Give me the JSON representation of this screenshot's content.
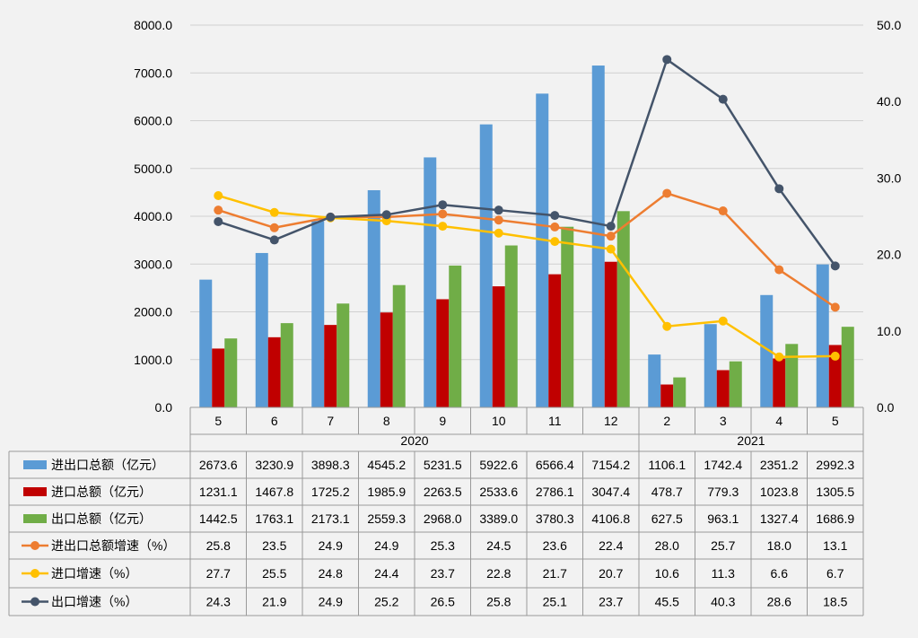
{
  "chart_data": {
    "type": "bar",
    "categories": [
      "5",
      "6",
      "7",
      "8",
      "9",
      "10",
      "11",
      "12",
      "2",
      "3",
      "4",
      "5"
    ],
    "year_groups": [
      {
        "label": "2020",
        "count": 8
      },
      {
        "label": "2021",
        "count": 4
      }
    ],
    "y_left": {
      "min": 0,
      "max": 8000,
      "step": 1000,
      "tick_labels": [
        "0.0",
        "1000.0",
        "2000.0",
        "3000.0",
        "4000.0",
        "5000.0",
        "6000.0",
        "7000.0",
        "8000.0"
      ]
    },
    "y_right": {
      "min": 0,
      "max": 50,
      "step": 10,
      "tick_labels": [
        "0.0",
        "10.0",
        "20.0",
        "30.0",
        "40.0",
        "50.0"
      ]
    },
    "grid": "horizontal",
    "legend": "table-below",
    "bar_series": [
      {
        "name": "进出口总额（亿元）",
        "color": "#5b9bd5",
        "values": [
          2673.6,
          3230.9,
          3898.3,
          4545.2,
          5231.5,
          5922.6,
          6566.4,
          7154.2,
          1106.1,
          1742.4,
          2351.2,
          2992.3
        ],
        "labels": [
          "2673.6",
          "3230.9",
          "3898.3",
          "4545.2",
          "5231.5",
          "5922.6",
          "6566.4",
          "7154.2",
          "1106.1",
          "1742.4",
          "2351.2",
          "2992.3"
        ]
      },
      {
        "name": "进口总额（亿元）",
        "color": "#c00000",
        "values": [
          1231.1,
          1467.8,
          1725.2,
          1985.9,
          2263.5,
          2533.6,
          2786.1,
          3047.4,
          478.7,
          779.3,
          1023.8,
          1305.5
        ],
        "labels": [
          "1231.1",
          "1467.8",
          "1725.2",
          "1985.9",
          "2263.5",
          "2533.6",
          "2786.1",
          "3047.4",
          "478.7",
          "779.3",
          "1023.8",
          "1305.5"
        ]
      },
      {
        "name": "出口总额（亿元）",
        "color": "#70ad47",
        "values": [
          1442.5,
          1763.1,
          2173.1,
          2559.3,
          2968.0,
          3389.0,
          3780.3,
          4106.8,
          627.5,
          963.1,
          1327.4,
          1686.9
        ],
        "labels": [
          "1442.5",
          "1763.1",
          "2173.1",
          "2559.3",
          "2968.0",
          "3389.0",
          "3780.3",
          "4106.8",
          "627.5",
          "963.1",
          "1327.4",
          "1686.9"
        ]
      }
    ],
    "line_series": [
      {
        "name": "进出口总额增速（%）",
        "color": "#ed7d31",
        "values": [
          25.8,
          23.5,
          24.9,
          24.9,
          25.3,
          24.5,
          23.6,
          22.4,
          28.0,
          25.7,
          18.0,
          13.1
        ],
        "labels": [
          "25.8",
          "23.5",
          "24.9",
          "24.9",
          "25.3",
          "24.5",
          "23.6",
          "22.4",
          "28.0",
          "25.7",
          "18.0",
          "13.1"
        ]
      },
      {
        "name": "进口增速（%）",
        "color": "#ffc000",
        "values": [
          27.7,
          25.5,
          24.8,
          24.4,
          23.7,
          22.8,
          21.7,
          20.7,
          10.6,
          11.3,
          6.6,
          6.7
        ],
        "labels": [
          "27.7",
          "25.5",
          "24.8",
          "24.4",
          "23.7",
          "22.8",
          "21.7",
          "20.7",
          "10.6",
          "11.3",
          "6.6",
          "6.7"
        ]
      },
      {
        "name": "出口增速（%）",
        "color": "#44546a",
        "values": [
          24.3,
          21.9,
          24.9,
          25.2,
          26.5,
          25.8,
          25.1,
          23.7,
          45.5,
          40.3,
          28.6,
          18.5
        ],
        "labels": [
          "24.3",
          "21.9",
          "24.9",
          "25.2",
          "26.5",
          "25.8",
          "25.1",
          "23.7",
          "45.5",
          "40.3",
          "28.6",
          "18.5"
        ]
      }
    ]
  }
}
